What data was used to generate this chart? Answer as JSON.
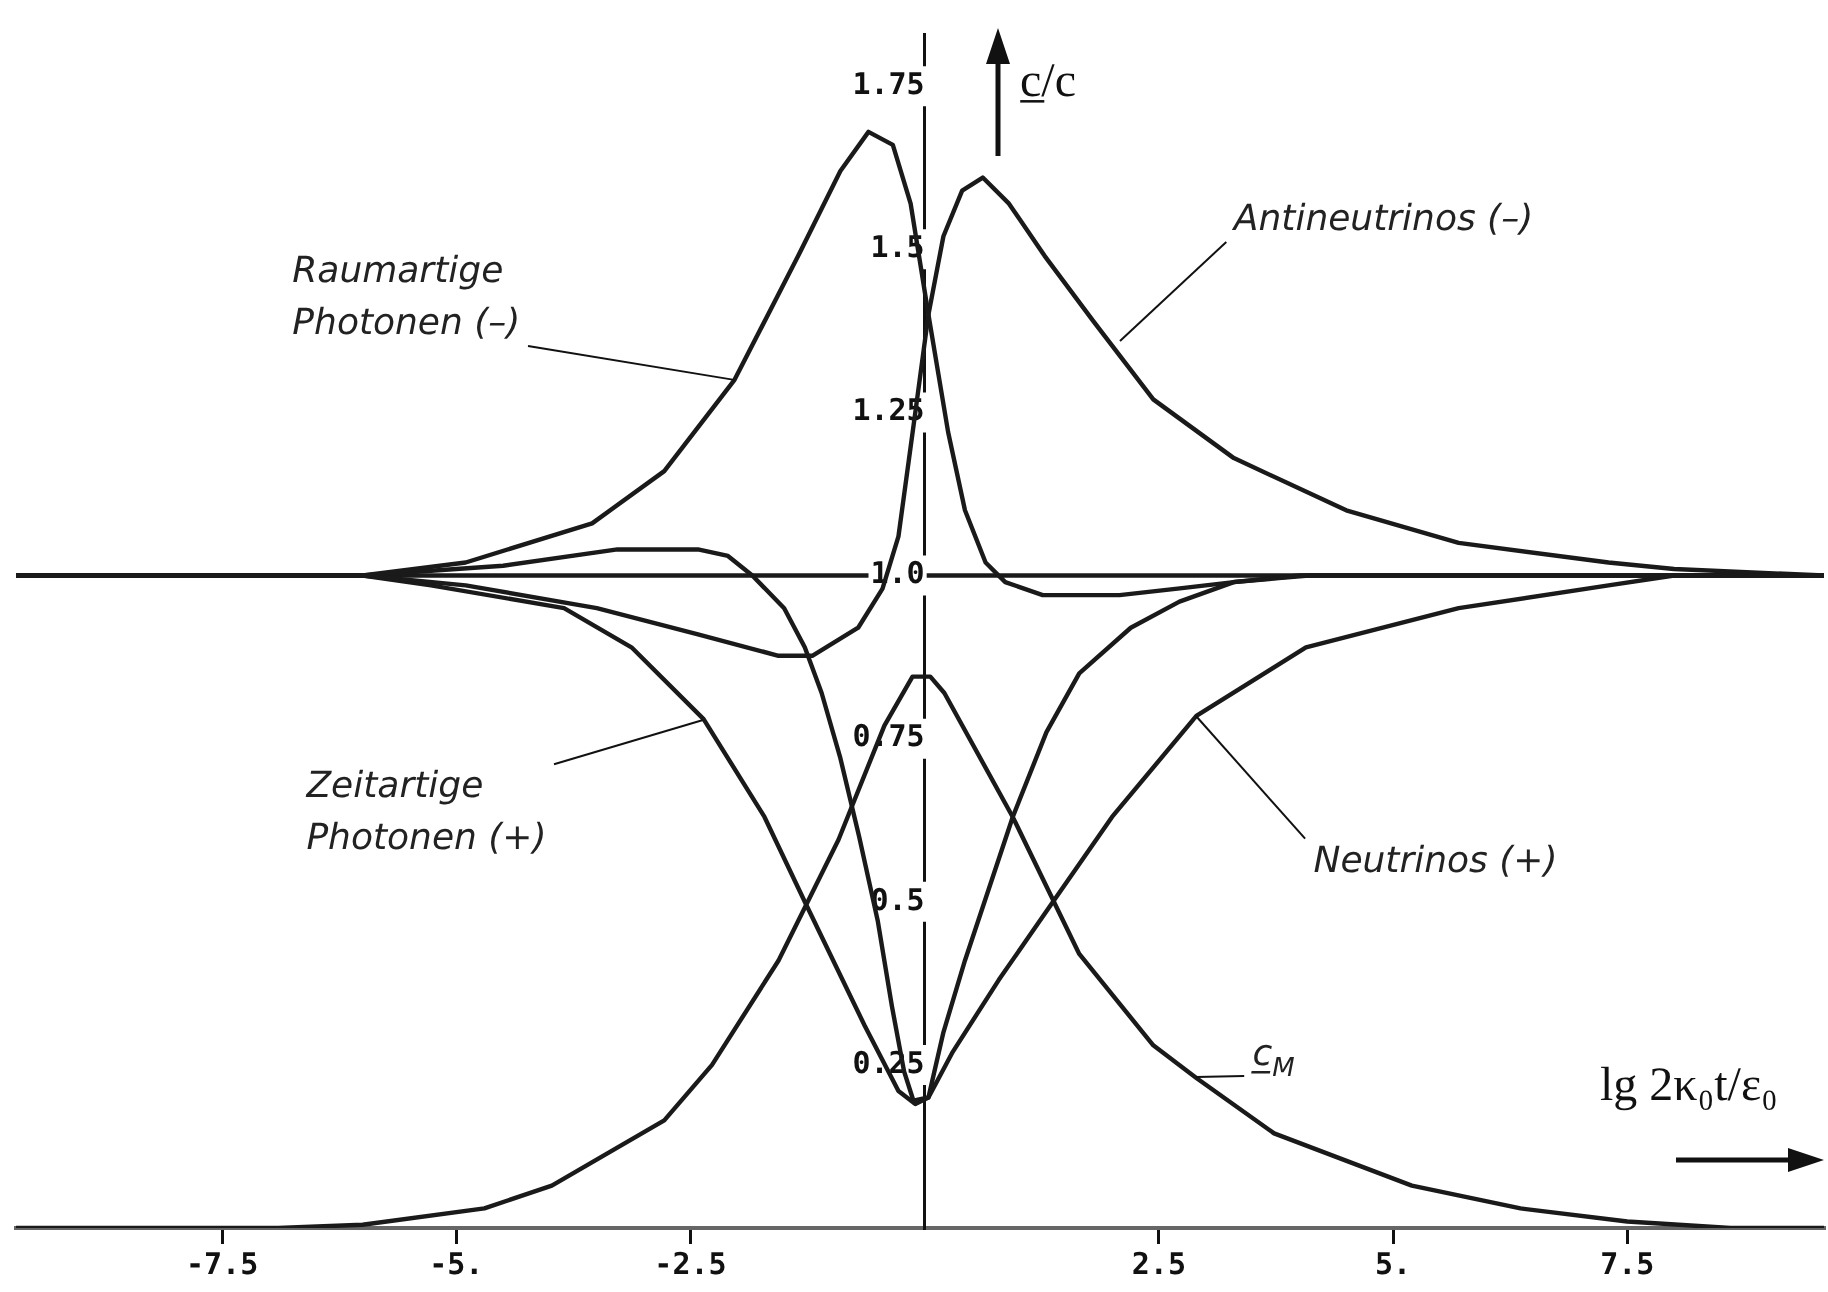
{
  "chart_data": {
    "type": "line",
    "xlabel": "lg 2κ₀t/ε₀",
    "ylabel": "c̲/c",
    "xlim": [
      -9.7,
      9.6
    ],
    "ylim": [
      0,
      1.83
    ],
    "xticks": [
      {
        "value": -7.5,
        "label": "-7.5"
      },
      {
        "value": -5,
        "label": "-5."
      },
      {
        "value": -2.5,
        "label": "-2.5"
      },
      {
        "value": 2.5,
        "label": "2.5"
      },
      {
        "value": 5,
        "label": "5."
      },
      {
        "value": 7.5,
        "label": "7.5"
      }
    ],
    "yticks": [
      0.25,
      0.5,
      0.75,
      {
        "value": 1,
        "label": "1.0"
      },
      1.25,
      1.5,
      1.75
    ],
    "grid": false,
    "legend": false,
    "marker": "none",
    "line_style": "solid",
    "annotations": [
      {
        "text": "Raumartige Photonen (–)",
        "x": -2.03,
        "y": 1.3
      },
      {
        "text": "Antineutrinos (–)",
        "x": 2.08,
        "y": 1.36
      },
      {
        "text": "Zeitartige Photonen (+)",
        "x": -2.36,
        "y": 0.78
      },
      {
        "text": "Neutrinos (+)",
        "x": 2.9,
        "y": 0.785
      },
      {
        "text": "c̲$_{M}$",
        "x": 2.9,
        "y": 0.23
      }
    ],
    "ref_lines": [
      {
        "axis": "y",
        "value": 1,
        "color": "#1a1a1a"
      }
    ],
    "series": [
      {
        "color": "#1a1a1a",
        "x": [
          -9.7,
          -6,
          -4.9,
          -3.55,
          -2.78,
          -2.03,
          -1.35,
          -0.9,
          -0.6,
          -0.34,
          -0.15,
          0.04,
          0.25,
          0.43,
          0.65,
          0.86,
          1.26,
          2.08,
          2.7,
          3.3,
          4.1,
          9.6
        ],
        "values": [
          1,
          1,
          1.02,
          1.08,
          1.16,
          1.3,
          1.49,
          1.62,
          1.68,
          1.66,
          1.57,
          1.4,
          1.22,
          1.1,
          1.02,
          0.99,
          0.97,
          0.97,
          0.98,
          0.99,
          1,
          1
        ]
      },
      {
        "color": "#1a1a1a",
        "x": [
          -9.7,
          -6,
          -4.9,
          -3.5,
          -2.42,
          -1.56,
          -1.2,
          -0.71,
          -0.45,
          -0.28,
          -0.1,
          0.04,
          0.2,
          0.4,
          0.62,
          0.9,
          1.28,
          1.8,
          2.44,
          3.3,
          4.5,
          5.7,
          7.3,
          8,
          9.6
        ],
        "values": [
          1,
          1,
          0.985,
          0.95,
          0.91,
          0.877,
          0.877,
          0.92,
          0.98,
          1.06,
          1.25,
          1.4,
          1.52,
          1.59,
          1.61,
          1.57,
          1.49,
          1.39,
          1.27,
          1.18,
          1.1,
          1.05,
          1.02,
          1.01,
          1
        ]
      },
      {
        "color": "#1a1a1a",
        "x": [
          -9.7,
          -6,
          -5.27,
          -3.85,
          -3.13,
          -2.36,
          -1.71,
          -1.28,
          -0.64,
          -0.28,
          -0.1,
          0.04,
          0.2,
          0.43,
          0.94,
          1.3,
          1.65,
          2.2,
          2.72,
          3.3,
          4,
          9.6
        ],
        "values": [
          1,
          1,
          0.985,
          0.95,
          0.89,
          0.78,
          0.63,
          0.5,
          0.31,
          0.21,
          0.19,
          0.2,
          0.3,
          0.41,
          0.63,
          0.76,
          0.85,
          0.92,
          0.96,
          0.99,
          1,
          1
        ]
      },
      {
        "color": "#1a1a1a",
        "x": [
          -9.7,
          -6,
          -4.5,
          -3.28,
          -2.42,
          -2.1,
          -1.84,
          -1.5,
          -1.28,
          -1.1,
          -0.9,
          -0.7,
          -0.5,
          -0.35,
          -0.22,
          -0.12,
          0.04,
          0.3,
          0.79,
          1.37,
          2,
          2.9,
          4.07,
          5.7,
          7.3,
          8,
          9.6
        ],
        "values": [
          1,
          1,
          1.015,
          1.04,
          1.04,
          1.03,
          1,
          0.95,
          0.89,
          0.82,
          0.72,
          0.6,
          0.47,
          0.34,
          0.24,
          0.195,
          0.2,
          0.27,
          0.38,
          0.5,
          0.63,
          0.785,
          0.89,
          0.95,
          0.985,
          1,
          1
        ]
      },
      {
        "color": "#1a1a1a",
        "x": [
          -9.7,
          -6.9,
          -6,
          -4.7,
          -3.98,
          -2.78,
          -2.27,
          -1.56,
          -0.92,
          -0.43,
          -0.13,
          0.06,
          0.21,
          0.94,
          1.65,
          2.44,
          2.9,
          3.73,
          5.2,
          6.36,
          7.5,
          8.6,
          9.6
        ],
        "values": [
          0,
          0,
          0.005,
          0.03,
          0.065,
          0.165,
          0.25,
          0.41,
          0.595,
          0.77,
          0.845,
          0.845,
          0.82,
          0.63,
          0.42,
          0.28,
          0.23,
          0.145,
          0.065,
          0.03,
          0.01,
          0,
          0
        ]
      }
    ]
  }
}
